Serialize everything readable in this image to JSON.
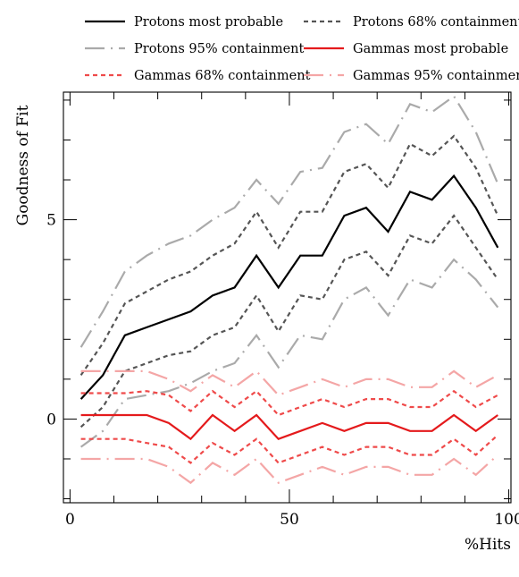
{
  "chart_data": {
    "type": "line",
    "xlabel": "%Hits",
    "ylabel": "Goodness of Fit",
    "xlim": [
      -1.5,
      100.5
    ],
    "ylim": [
      -2.1,
      8.2
    ],
    "xticks": [
      {
        "value": 0,
        "label": "0"
      },
      {
        "value": 50,
        "label": "50"
      },
      {
        "value": 100,
        "label": "100"
      }
    ],
    "yticks": [
      {
        "value": 0,
        "label": "0"
      },
      {
        "value": 5,
        "label": "5"
      }
    ],
    "x": [
      2.5,
      7.5,
      12.5,
      17.5,
      22.5,
      27.5,
      32.5,
      37.5,
      42.5,
      47.5,
      52.5,
      57.5,
      62.5,
      67.5,
      72.5,
      77.5,
      82.5,
      87.5,
      92.5,
      97.5
    ],
    "series": [
      {
        "name": "Protons most probable",
        "color": "#000000",
        "style": "solid",
        "values": [
          0.5,
          1.1,
          2.1,
          2.3,
          2.5,
          2.7,
          3.1,
          3.3,
          4.1,
          3.3,
          4.1,
          4.1,
          5.1,
          5.3,
          4.7,
          5.7,
          5.5,
          6.1,
          5.3,
          4.3
        ]
      },
      {
        "name": "Protons 68% containment",
        "color": "#555555",
        "style": "dashed",
        "values": [
          1.1,
          1.9,
          2.9,
          3.2,
          3.5,
          3.7,
          4.1,
          4.4,
          5.2,
          4.3,
          5.2,
          5.2,
          6.2,
          6.4,
          5.8,
          6.9,
          6.6,
          7.1,
          6.3,
          5.1
        ]
      },
      {
        "name": "Protons 68% containment",
        "color": "#555555",
        "style": "dashed",
        "values": [
          -0.2,
          0.3,
          1.2,
          1.4,
          1.6,
          1.7,
          2.1,
          2.3,
          3.1,
          2.2,
          3.1,
          3.0,
          4.0,
          4.2,
          3.6,
          4.6,
          4.4,
          5.1,
          4.3,
          3.5
        ]
      },
      {
        "name": "Protons 95% containment",
        "color": "#aaaaaa",
        "style": "dashdot",
        "values": [
          1.8,
          2.7,
          3.7,
          4.1,
          4.4,
          4.6,
          5.0,
          5.3,
          6.0,
          5.4,
          6.2,
          6.3,
          7.2,
          7.4,
          6.9,
          7.9,
          7.7,
          8.1,
          7.2,
          5.9
        ]
      },
      {
        "name": "Protons 95% containment",
        "color": "#aaaaaa",
        "style": "dashdot",
        "values": [
          -0.7,
          -0.3,
          0.5,
          0.6,
          0.7,
          0.9,
          1.2,
          1.4,
          2.1,
          1.3,
          2.1,
          2.0,
          3.0,
          3.3,
          2.6,
          3.5,
          3.3,
          4.0,
          3.5,
          2.8
        ]
      },
      {
        "name": "Gammas most probable",
        "color": "#e41a1c",
        "style": "solid",
        "values": [
          0.1,
          0.1,
          0.1,
          0.1,
          -0.1,
          -0.5,
          0.1,
          -0.3,
          0.1,
          -0.5,
          -0.3,
          -0.1,
          -0.3,
          -0.1,
          -0.1,
          -0.3,
          -0.3,
          0.1,
          -0.3,
          0.1
        ]
      },
      {
        "name": "Gammas 68% containment",
        "color": "#ef4a4a",
        "style": "dashed",
        "values": [
          0.65,
          0.65,
          0.65,
          0.7,
          0.6,
          0.2,
          0.7,
          0.3,
          0.7,
          0.1,
          0.3,
          0.5,
          0.3,
          0.5,
          0.5,
          0.3,
          0.3,
          0.7,
          0.3,
          0.6
        ]
      },
      {
        "name": "Gammas 68% containment",
        "color": "#ef4a4a",
        "style": "dashed",
        "values": [
          -0.5,
          -0.5,
          -0.5,
          -0.6,
          -0.7,
          -1.1,
          -0.6,
          -0.9,
          -0.5,
          -1.1,
          -0.9,
          -0.7,
          -0.9,
          -0.7,
          -0.7,
          -0.9,
          -0.9,
          -0.5,
          -0.9,
          -0.4
        ]
      },
      {
        "name": "Gammas 95% containment",
        "color": "#f4a6a6",
        "style": "dashdot",
        "values": [
          1.2,
          1.2,
          1.2,
          1.2,
          1.0,
          0.7,
          1.1,
          0.8,
          1.2,
          0.6,
          0.8,
          1.0,
          0.8,
          1.0,
          1.0,
          0.8,
          0.8,
          1.2,
          0.8,
          1.1
        ]
      },
      {
        "name": "Gammas 95% containment",
        "color": "#f4a6a6",
        "style": "dashdot",
        "values": [
          -1.0,
          -1.0,
          -1.0,
          -1.0,
          -1.2,
          -1.6,
          -1.1,
          -1.4,
          -1.0,
          -1.6,
          -1.4,
          -1.2,
          -1.4,
          -1.2,
          -1.2,
          -1.4,
          -1.4,
          -1.0,
          -1.4,
          -0.9
        ]
      }
    ],
    "legend": {
      "placement": "top",
      "items": [
        {
          "label": "Protons most probable",
          "color": "#000000",
          "style": "solid"
        },
        {
          "label": "Protons 68% containment",
          "color": "#555555",
          "style": "dashed"
        },
        {
          "label": "Protons 95% containment",
          "color": "#aaaaaa",
          "style": "dashdot"
        },
        {
          "label": "Gammas most probable",
          "color": "#e41a1c",
          "style": "solid"
        },
        {
          "label": "Gammas 68% containment",
          "color": "#ef4a4a",
          "style": "dashed"
        },
        {
          "label": "Gammas 95% containment",
          "color": "#f4a6a6",
          "style": "dashdot"
        }
      ]
    },
    "grid": false
  }
}
